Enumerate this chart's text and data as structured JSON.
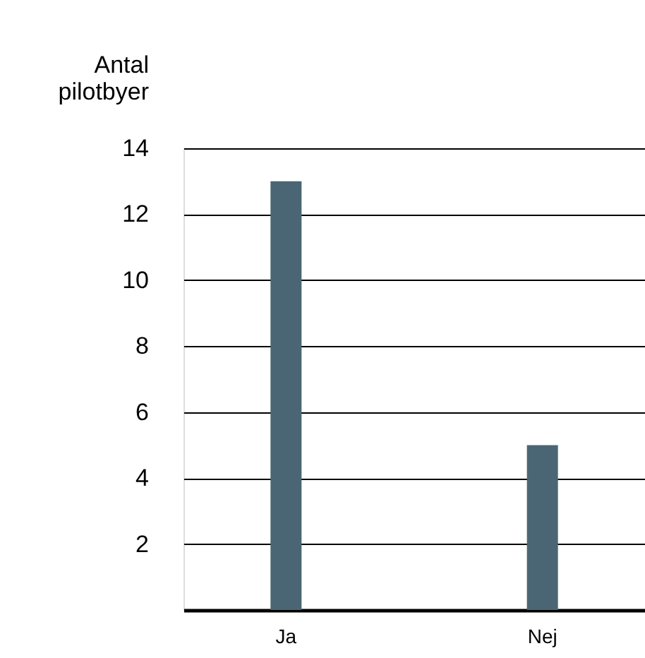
{
  "chart_data": {
    "type": "bar",
    "ylabel": "Antal pilotbyer",
    "categories": [
      "Ja",
      "Nej"
    ],
    "values": [
      13,
      5
    ],
    "color": "#4a6674",
    "ylim": [
      0,
      14
    ],
    "yticks": [
      2,
      4,
      6,
      8,
      10,
      12,
      14
    ],
    "grid": "y"
  }
}
